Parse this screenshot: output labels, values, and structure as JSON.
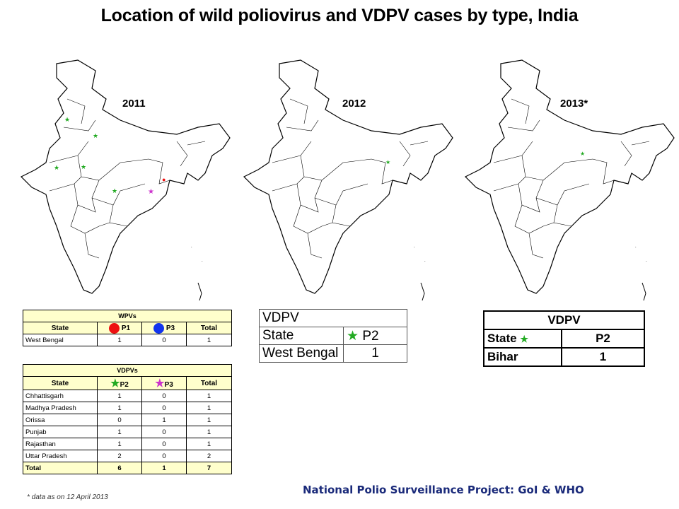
{
  "title": "Location of wild poliovirus and VDPV cases by type, India",
  "maps": [
    {
      "year": "2011"
    },
    {
      "year": "2012"
    },
    {
      "year": "2013*"
    }
  ],
  "colors": {
    "wpv_p1": "#ee1111",
    "wpv_p3": "#1133ee",
    "vdpv_p2": "#22aa22",
    "vdpv_p3": "#cc33cc",
    "header_fill": "#ffffcc",
    "footer_text": "#1a2a7a"
  },
  "wpv_table": {
    "caption": "WPVs",
    "headers": [
      "State",
      "P1",
      "P3",
      "Total"
    ],
    "rows": [
      [
        "West Bengal",
        "1",
        "0",
        "1"
      ]
    ]
  },
  "vdpv_table": {
    "caption": "VDPVs",
    "headers": [
      "State",
      "P2",
      "P3",
      "Total"
    ],
    "rows": [
      [
        "Chhattisgarh",
        "1",
        "0",
        "1"
      ],
      [
        "Madhya Pradesh",
        "1",
        "0",
        "1"
      ],
      [
        "Orissa",
        "0",
        "1",
        "1"
      ],
      [
        "Punjab",
        "1",
        "0",
        "1"
      ],
      [
        "Rajasthan",
        "1",
        "0",
        "1"
      ],
      [
        "Uttar Pradesh",
        "2",
        "0",
        "2"
      ]
    ],
    "total": [
      "Total",
      "6",
      "1",
      "7"
    ]
  },
  "vdpv_2012": {
    "caption": "VDPV",
    "headers": [
      "State",
      "P2"
    ],
    "rows": [
      [
        "West Bengal",
        "1"
      ]
    ]
  },
  "vdpv_2013": {
    "caption": "VDPV",
    "headers": [
      "State",
      "P2"
    ],
    "rows": [
      [
        "Bihar",
        "1"
      ]
    ]
  },
  "note": "* data as on 12 April 2013",
  "footer": "National Polio Surveillance Project: GoI & WHO"
}
